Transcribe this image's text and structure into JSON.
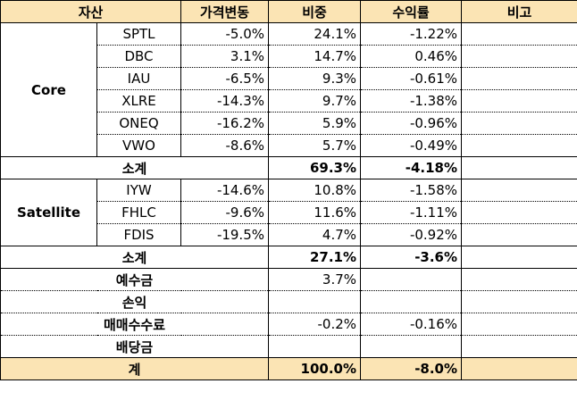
{
  "headers": {
    "asset": "자산",
    "price_change": "가격변동",
    "weight": "비중",
    "return": "수익률",
    "note": "비고"
  },
  "core": {
    "label": "Core",
    "rows": [
      {
        "ticker": "SPTL",
        "price_change": "-5.0%",
        "weight": "24.1%",
        "return": "-1.22%"
      },
      {
        "ticker": "DBC",
        "price_change": "3.1%",
        "weight": "14.7%",
        "return": "0.46%"
      },
      {
        "ticker": "IAU",
        "price_change": "-6.5%",
        "weight": "9.3%",
        "return": "-0.61%"
      },
      {
        "ticker": "XLRE",
        "price_change": "-14.3%",
        "weight": "9.7%",
        "return": "-1.38%"
      },
      {
        "ticker": "ONEQ",
        "price_change": "-16.2%",
        "weight": "5.9%",
        "return": "-0.96%"
      },
      {
        "ticker": "VWO",
        "price_change": "-8.6%",
        "weight": "5.7%",
        "return": "-0.49%"
      }
    ],
    "subtotal": {
      "label": "소계",
      "weight": "69.3%",
      "return": "-4.18%"
    }
  },
  "satellite": {
    "label": "Satellite",
    "rows": [
      {
        "ticker": "IYW",
        "price_change": "-14.6%",
        "weight": "10.8%",
        "return": "-1.58%"
      },
      {
        "ticker": "FHLC",
        "price_change": "-9.6%",
        "weight": "11.6%",
        "return": "-1.11%"
      },
      {
        "ticker": "FDIS",
        "price_change": "-19.5%",
        "weight": "4.7%",
        "return": "-0.92%"
      }
    ],
    "subtotal": {
      "label": "소계",
      "weight": "27.1%",
      "return": "-3.6%"
    }
  },
  "others": [
    {
      "label": "예수금",
      "weight": "3.7%",
      "return": ""
    },
    {
      "label": "손익",
      "weight": "",
      "return": ""
    },
    {
      "label": "매매수수료",
      "weight": "-0.2%",
      "return": "-0.16%"
    },
    {
      "label": "배당금",
      "weight": "",
      "return": ""
    }
  ],
  "total": {
    "label": "계",
    "weight": "100.0%",
    "return": "-8.0%"
  }
}
